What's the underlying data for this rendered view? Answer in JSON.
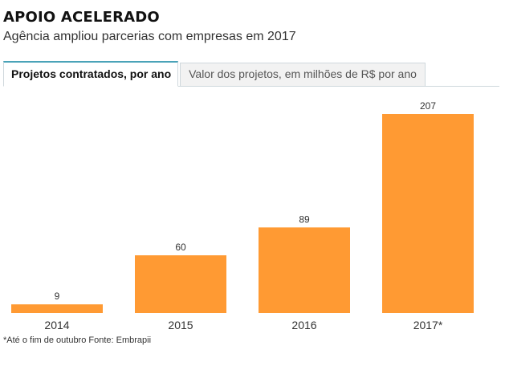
{
  "header": {
    "title": "APOIO ACELERADO",
    "subtitle": "Agência ampliou parcerias com empresas em 2017"
  },
  "tabs": [
    {
      "label": "Projetos contratados, por ano",
      "active": true
    },
    {
      "label": "Valor dos projetos, em milhões de R$ por ano",
      "active": false
    }
  ],
  "chart_data": {
    "type": "bar",
    "categories": [
      "2014",
      "2015",
      "2016",
      "2017*"
    ],
    "values": [
      9,
      60,
      89,
      207
    ],
    "data_labels": [
      "9",
      "60",
      "89",
      "207"
    ],
    "ylim": [
      0,
      207
    ],
    "grid": false,
    "legend": "none",
    "bar_color": "#ff9a33"
  },
  "footnote": "*Até o fim de outubro Fonte: Embrapii"
}
